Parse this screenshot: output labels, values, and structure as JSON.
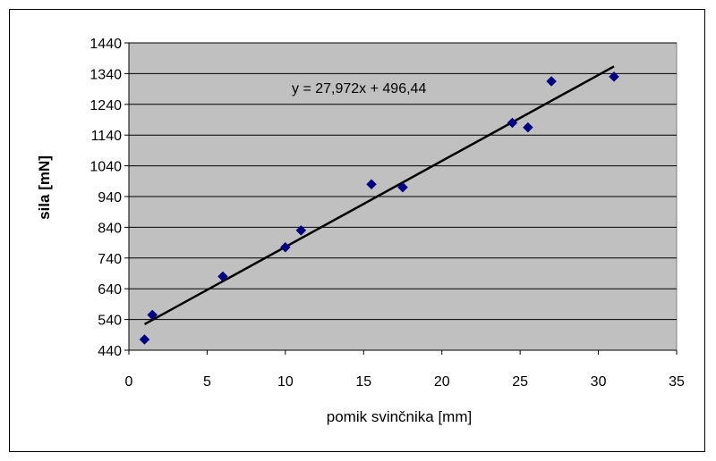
{
  "chart_data": {
    "type": "scatter",
    "title": "",
    "xlabel": "pomik svinčnika [mm]",
    "ylabel": "sila [mN]",
    "xlim": [
      0,
      35
    ],
    "ylim": [
      440,
      1440
    ],
    "xticks": [
      "0",
      "5",
      "10",
      "15",
      "20",
      "25",
      "30",
      "35"
    ],
    "yticks": [
      "440",
      "540",
      "640",
      "740",
      "840",
      "940",
      "1040",
      "1140",
      "1240",
      "1340",
      "1440"
    ],
    "grid": "horizontal",
    "legend": "none",
    "plot_background": "#c0c0c0",
    "marker_color": "#000080",
    "series": [
      {
        "x": [
          1.0,
          1.5,
          6.0,
          10.0,
          11.0,
          15.5,
          17.5,
          24.5,
          25.5,
          27.0,
          31.0
        ],
        "y": [
          475,
          555,
          680,
          775,
          830,
          980,
          970,
          1180,
          1165,
          1315,
          1330
        ]
      }
    ],
    "trendline": {
      "equation": "y = 27,972x + 496,44",
      "slope": 27.972,
      "intercept": 496.44,
      "x_range": [
        1.0,
        31.0
      ]
    }
  }
}
